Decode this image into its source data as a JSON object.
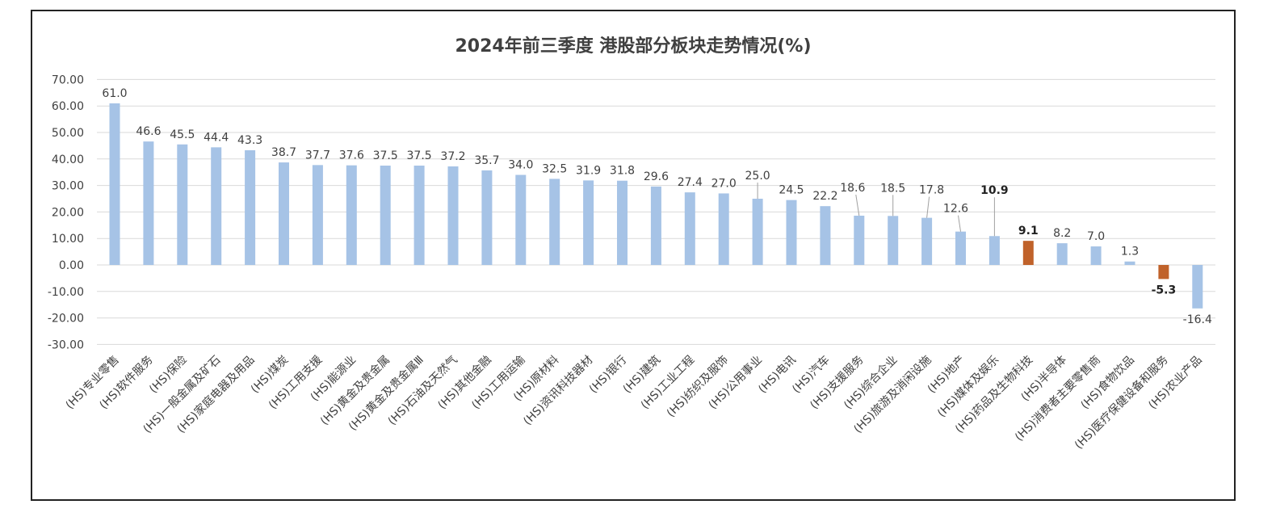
{
  "chart_data": {
    "type": "bar",
    "title": "2024年前三季度 港股部分板块走势情况(%)",
    "xlabel": "",
    "ylabel": "",
    "ylim": [
      -30,
      70
    ],
    "yticks": [
      "70.00",
      "60.00",
      "50.00",
      "40.00",
      "30.00",
      "20.00",
      "10.00",
      "0.00",
      "-10.00",
      "-20.00",
      "-30.00"
    ],
    "grid": true,
    "legend": "none",
    "colors": {
      "default": "#a6c3e6",
      "highlight": "#c0622a",
      "grid": "#d9d9d9",
      "text": "#404040"
    },
    "categories": [
      "(HS)专业零售",
      "(HS)软件服务",
      "(HS)保险",
      "(HS)一般金属及矿石",
      "(HS)家庭电器及用品",
      "(HS)煤炭",
      "(HS)工用支援",
      "(HS)能源业",
      "(HS)黄金及贵金属",
      "(HS)黄金及贵金属Ⅲ",
      "(HS)石油及天然气",
      "(HS)其他金融",
      "(HS)工用运输",
      "(HS)原材料",
      "(HS)资讯科技器材",
      "(HS)银行",
      "(HS)建筑",
      "(HS)工业工程",
      "(HS)纺织及服饰",
      "(HS)公用事业",
      "(HS)电讯",
      "(HS)汽车",
      "(HS)支援服务",
      "(HS)综合企业",
      "(HS)旅游及消闲设施",
      "(HS)地产",
      "(HS)媒体及娱乐",
      "(HS)药品及生物科技",
      "(HS)半导体",
      "(HS)消费者主要零售商",
      "(HS)食物饮品",
      "(HS)医疗保健设备和服务",
      "(HS)农业产品"
    ],
    "values": [
      61.0,
      46.6,
      45.5,
      44.4,
      43.3,
      38.7,
      37.7,
      37.6,
      37.5,
      37.5,
      37.2,
      35.7,
      34.0,
      32.5,
      31.9,
      31.8,
      29.6,
      27.4,
      27.0,
      25.0,
      24.5,
      22.2,
      18.6,
      18.5,
      17.8,
      12.6,
      10.9,
      9.1,
      8.2,
      7.0,
      1.3,
      -5.3,
      -16.4
    ],
    "labels": [
      "61.0",
      "46.6",
      "45.5",
      "44.4",
      "43.3",
      "38.7",
      "37.7",
      "37.6",
      "37.5",
      "37.5",
      "37.2",
      "35.7",
      "34.0",
      "32.5",
      "31.9",
      "31.8",
      "29.6",
      "27.4",
      "27.0",
      "25.0",
      "24.5",
      "22.2",
      "18.6",
      "18.5",
      "17.8",
      "12.6",
      "10.9",
      "9.1",
      "8.2",
      "7.0",
      "1.3",
      "-5.3",
      "-16.4"
    ],
    "highlight": [
      false,
      false,
      false,
      false,
      false,
      false,
      false,
      false,
      false,
      false,
      false,
      false,
      false,
      false,
      false,
      false,
      false,
      false,
      false,
      false,
      false,
      false,
      false,
      false,
      false,
      false,
      false,
      true,
      false,
      false,
      false,
      true,
      false
    ],
    "bold_labels": [
      false,
      false,
      false,
      false,
      false,
      false,
      false,
      false,
      false,
      false,
      false,
      false,
      false,
      false,
      false,
      false,
      false,
      false,
      false,
      false,
      false,
      false,
      false,
      false,
      false,
      false,
      true,
      true,
      false,
      false,
      false,
      true,
      false
    ]
  }
}
